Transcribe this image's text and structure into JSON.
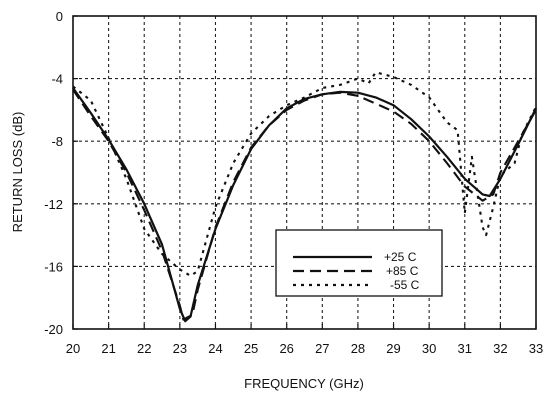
{
  "chart_data": {
    "type": "line",
    "title": "",
    "xlabel": "FREQUENCY (GHz)",
    "ylabel": "RETURN LOSS (dB)",
    "xlim": [
      20,
      33
    ],
    "ylim": [
      -20,
      0
    ],
    "xticks": [
      "20",
      "21",
      "22",
      "23",
      "24",
      "25",
      "26",
      "27",
      "28",
      "29",
      "30",
      "31",
      "32",
      "33"
    ],
    "yticks": [
      "0",
      "-4",
      "-8",
      "-12",
      "-16",
      "-20"
    ],
    "grid": true,
    "legend_position": "lower-right",
    "series": [
      {
        "name": "+25 C",
        "style": "solid",
        "points": [
          [
            20,
            -4.6
          ],
          [
            20.5,
            -6.2
          ],
          [
            21,
            -7.9
          ],
          [
            21.5,
            -9.8
          ],
          [
            22,
            -12
          ],
          [
            22.5,
            -14.6
          ],
          [
            23,
            -18.7
          ],
          [
            23.15,
            -19.5
          ],
          [
            23.3,
            -19.2
          ],
          [
            23.5,
            -17.2
          ],
          [
            24,
            -13.6
          ],
          [
            24.5,
            -10.8
          ],
          [
            25,
            -8.5
          ],
          [
            25.5,
            -7
          ],
          [
            26,
            -5.9
          ],
          [
            26.5,
            -5.3
          ],
          [
            27,
            -5
          ],
          [
            27.5,
            -4.85
          ],
          [
            28,
            -4.9
          ],
          [
            28.5,
            -5.2
          ],
          [
            29,
            -5.7
          ],
          [
            29.5,
            -6.6
          ],
          [
            30,
            -7.7
          ],
          [
            30.5,
            -9
          ],
          [
            31,
            -10.4
          ],
          [
            31.5,
            -11.4
          ],
          [
            31.7,
            -11.5
          ],
          [
            32,
            -10.4
          ],
          [
            32.5,
            -8.2
          ],
          [
            33,
            -5.9
          ]
        ]
      },
      {
        "name": "+85 C",
        "style": "dashed",
        "points": [
          [
            20,
            -4.7
          ],
          [
            20.5,
            -6.4
          ],
          [
            21,
            -8
          ],
          [
            21.5,
            -10
          ],
          [
            22,
            -12.4
          ],
          [
            22.5,
            -15
          ],
          [
            23,
            -18.5
          ],
          [
            23.1,
            -19.4
          ],
          [
            23.35,
            -19.1
          ],
          [
            23.5,
            -17.5
          ],
          [
            24,
            -13.5
          ],
          [
            24.5,
            -10.6
          ],
          [
            25,
            -8.4
          ],
          [
            25.5,
            -7
          ],
          [
            26,
            -6
          ],
          [
            26.5,
            -5.4
          ],
          [
            27,
            -5
          ],
          [
            27.5,
            -4.9
          ],
          [
            28,
            -5.1
          ],
          [
            28.5,
            -5.6
          ],
          [
            29,
            -6.1
          ],
          [
            29.5,
            -6.9
          ],
          [
            30,
            -8
          ],
          [
            30.5,
            -9.4
          ],
          [
            31,
            -10.9
          ],
          [
            31.5,
            -11.8
          ],
          [
            31.8,
            -11.4
          ],
          [
            32,
            -10
          ],
          [
            32.5,
            -8
          ],
          [
            33,
            -6
          ]
        ]
      },
      {
        "name": "-55 C",
        "style": "dotted",
        "points": [
          [
            20,
            -4.5
          ],
          [
            20.5,
            -5.4
          ],
          [
            21,
            -7.8
          ],
          [
            21.5,
            -10.4
          ],
          [
            22,
            -13.6
          ],
          [
            22.5,
            -15.2
          ],
          [
            23,
            -16.2
          ],
          [
            23.3,
            -16.6
          ],
          [
            23.5,
            -16.3
          ],
          [
            24,
            -12.2
          ],
          [
            24.5,
            -9.4
          ],
          [
            25,
            -7.5
          ],
          [
            25.5,
            -6.4
          ],
          [
            26,
            -5.7
          ],
          [
            26.5,
            -5.2
          ],
          [
            27,
            -4.6
          ],
          [
            27.5,
            -4.4
          ],
          [
            28,
            -4
          ],
          [
            28.3,
            -4.3
          ],
          [
            28.5,
            -3.6
          ],
          [
            29,
            -3.9
          ],
          [
            29.5,
            -4.4
          ],
          [
            30,
            -5.2
          ],
          [
            30.5,
            -6.8
          ],
          [
            30.8,
            -7.3
          ],
          [
            31,
            -12.6
          ],
          [
            31.2,
            -9
          ],
          [
            31.5,
            -13.5
          ],
          [
            31.6,
            -14
          ],
          [
            31.8,
            -12.2
          ],
          [
            32,
            -10.2
          ],
          [
            32.4,
            -9.4
          ],
          [
            32.6,
            -7.6
          ],
          [
            33,
            -5.8
          ]
        ]
      }
    ]
  }
}
